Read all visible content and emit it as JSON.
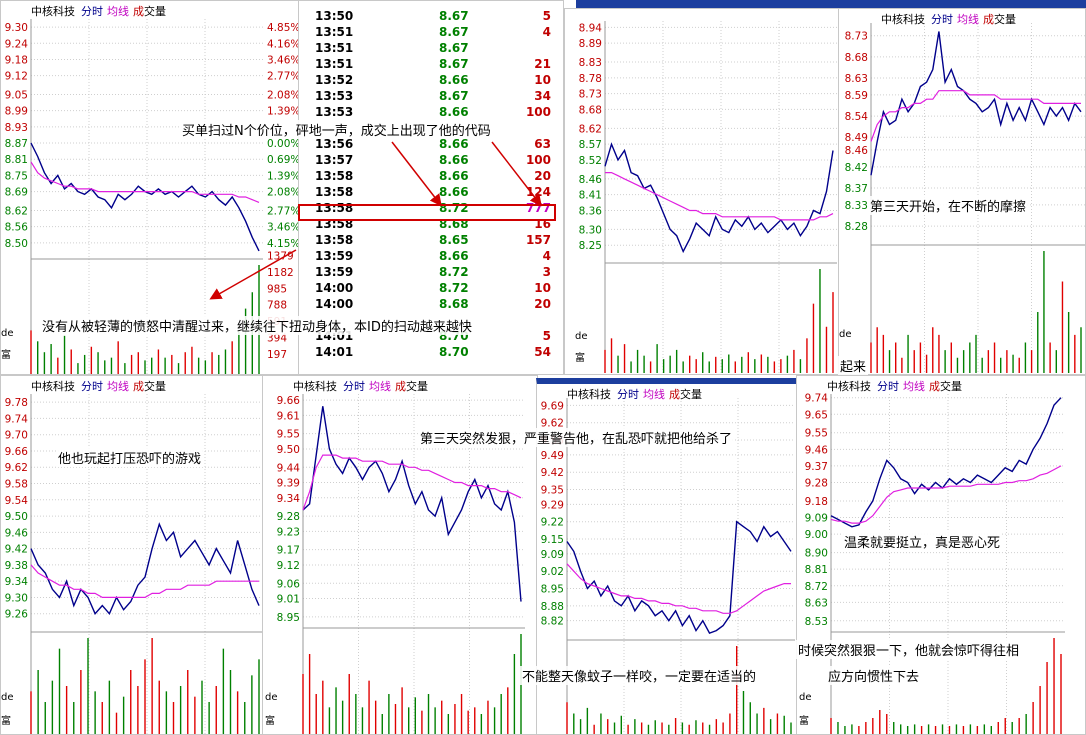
{
  "header": {
    "name": "中核科技",
    "tab_time": "分时",
    "tab_avg": "均线",
    "tab_vol_1": "成",
    "tab_vol_2": "交",
    "tab_vol_3": "量"
  },
  "colors": {
    "price": "#00008b",
    "avg": "#e020e0",
    "up": "#e00000",
    "down": "#008000",
    "grid": "#cfcfcf",
    "axis_left": "#c00000",
    "axis_right": "#c00000"
  },
  "side_labels": {
    "de": "de",
    "fu": "富"
  },
  "annotations": {
    "a1": "买单扫过N个价位，砰地一声，成交上出现了他的代码",
    "a2": "没有从被轻薄的愤怒中清醒过来，继续往下扭动身体，本ID的扫动越来越快",
    "a3": "第三天开始，在不断的摩擦",
    "a4": "他也玩起打压恐吓的游戏",
    "a5": "第三天突然发狠，严重警告他，在乱恐吓就把他给杀了",
    "a6": "温柔就要挺立，真是恶心死",
    "a7": "不能整天像蚊子一样咬，一定要在适当的",
    "a8": "时候突然狠狠一下，他就会惊吓得往相",
    "a9": "应方向惯性下去",
    "a10": "起来"
  },
  "tape": [
    {
      "t": "13:50",
      "p": "8.67",
      "v": "5"
    },
    {
      "t": "13:51",
      "p": "8.67",
      "v": "4"
    },
    {
      "t": "13:51",
      "p": "8.67",
      "v": ""
    },
    {
      "t": "13:51",
      "p": "8.67",
      "v": "21"
    },
    {
      "t": "13:52",
      "p": "8.66",
      "v": "10"
    },
    {
      "t": "13:53",
      "p": "8.67",
      "v": "34"
    },
    {
      "t": "13:53",
      "p": "8.66",
      "v": "100"
    },
    {
      "t": "13:56",
      "p": "8.66",
      "v": "63"
    },
    {
      "t": "13:57",
      "p": "8.66",
      "v": "100"
    },
    {
      "t": "13:58",
      "p": "8.66",
      "v": "20"
    },
    {
      "t": "13:58",
      "p": "8.66",
      "v": "124"
    },
    {
      "t": "13:58",
      "p": "8.72",
      "v": "777"
    },
    {
      "t": "13:58",
      "p": "8.68",
      "v": "16"
    },
    {
      "t": "13:58",
      "p": "8.65",
      "v": "157"
    },
    {
      "t": "13:59",
      "p": "8.66",
      "v": "4"
    },
    {
      "t": "13:59",
      "p": "8.72",
      "v": "3"
    },
    {
      "t": "14:00",
      "p": "8.72",
      "v": "10"
    },
    {
      "t": "14:00",
      "p": "8.68",
      "v": "20"
    },
    {
      "t": "14:01",
      "p": "8.70",
      "v": "5"
    },
    {
      "t": "14:01",
      "p": "8.70",
      "v": "54"
    }
  ],
  "chart_data": [
    {
      "type": "line",
      "id": "p1",
      "yticks_left": [
        "9.30",
        "9.24",
        "9.18",
        "9.12",
        "9.05",
        "8.99",
        "8.93",
        "8.87",
        "8.81",
        "8.75",
        "8.69",
        "8.62",
        "8.56",
        "8.50"
      ],
      "yticks_right": [
        "4.85%",
        "4.16%",
        "3.46%",
        "2.77%",
        "2.08%",
        "1.39%",
        "",
        "0.00%",
        "0.69%",
        "1.39%",
        "2.08%",
        "2.77%",
        "3.46%",
        "4.15%"
      ],
      "vol_ticks": [
        "1379",
        "1182",
        "985",
        "788",
        "591",
        "394",
        "197"
      ],
      "ylim": [
        8.44,
        9.33
      ],
      "series": [
        {
          "values": [
            8.87,
            8.82,
            8.76,
            8.72,
            8.75,
            8.7,
            8.72,
            8.69,
            8.68,
            8.7,
            8.67,
            8.66,
            8.63,
            8.68,
            8.66,
            8.68,
            8.71,
            8.69,
            8.68,
            8.7,
            8.68,
            8.69,
            8.67,
            8.69,
            8.71,
            8.68,
            8.67,
            8.69,
            8.66,
            8.64,
            8.67,
            8.63,
            8.58,
            8.52,
            8.47
          ]
        },
        {
          "values": [
            8.8,
            8.76,
            8.74,
            8.73,
            8.72,
            8.71,
            8.71,
            8.7,
            8.7,
            8.7,
            8.69,
            8.69,
            8.69,
            8.69,
            8.69,
            8.69,
            8.69,
            8.69,
            8.69,
            8.69,
            8.69,
            8.69,
            8.69,
            8.69,
            8.69,
            8.68,
            8.68,
            8.68,
            8.68,
            8.68,
            8.68,
            8.67,
            8.67,
            8.66,
            8.65
          ]
        }
      ],
      "volumes": [
        80,
        60,
        40,
        55,
        30,
        70,
        45,
        20,
        35,
        50,
        40,
        25,
        30,
        60,
        20,
        35,
        40,
        25,
        30,
        45,
        30,
        35,
        20,
        40,
        50,
        30,
        25,
        40,
        35,
        45,
        60,
        80,
        120,
        150,
        200
      ]
    },
    {
      "type": "line",
      "id": "p2",
      "yticks_left": [
        "8.94",
        "8.89",
        "8.83",
        "8.78",
        "8.73",
        "8.68",
        "8.62",
        "8.57",
        "8.52",
        "8.46",
        "8.41",
        "8.36",
        "8.30",
        "8.25"
      ],
      "ylim": [
        8.2,
        8.96
      ],
      "series": [
        {
          "values": [
            8.5,
            8.57,
            8.52,
            8.55,
            8.48,
            8.47,
            8.43,
            8.44,
            8.4,
            8.35,
            8.3,
            8.28,
            8.23,
            8.27,
            8.32,
            8.3,
            8.28,
            8.34,
            8.3,
            8.29,
            8.33,
            8.31,
            8.34,
            8.3,
            8.32,
            8.29,
            8.31,
            8.33,
            8.3,
            8.32,
            8.28,
            8.31,
            8.36,
            8.35,
            8.42,
            8.55
          ]
        },
        {
          "values": [
            8.48,
            8.48,
            8.47,
            8.46,
            8.45,
            8.44,
            8.43,
            8.42,
            8.41,
            8.4,
            8.39,
            8.38,
            8.37,
            8.36,
            8.36,
            8.35,
            8.35,
            8.35,
            8.34,
            8.34,
            8.34,
            8.34,
            8.34,
            8.34,
            8.34,
            8.34,
            8.34,
            8.33,
            8.33,
            8.33,
            8.33,
            8.33,
            8.33,
            8.34,
            8.34,
            8.35
          ]
        }
      ],
      "volumes": [
        20,
        30,
        15,
        25,
        10,
        20,
        15,
        10,
        25,
        12,
        15,
        20,
        10,
        15,
        12,
        18,
        10,
        14,
        12,
        16,
        10,
        14,
        18,
        12,
        16,
        14,
        10,
        12,
        15,
        20,
        12,
        30,
        60,
        90,
        40,
        70
      ]
    },
    {
      "type": "line",
      "id": "p3",
      "yticks_left": [
        "8.73",
        "8.68",
        "8.63",
        "8.59",
        "8.54",
        "8.49",
        "8.46",
        "8.42",
        "8.37",
        "8.33",
        "8.28"
      ],
      "ylim": [
        8.24,
        8.76
      ],
      "series": [
        {
          "values": [
            8.4,
            8.48,
            8.55,
            8.52,
            8.53,
            8.58,
            8.55,
            8.57,
            8.61,
            8.62,
            8.65,
            8.74,
            8.62,
            8.65,
            8.61,
            8.6,
            8.58,
            8.57,
            8.55,
            8.56,
            8.58,
            8.52,
            8.57,
            8.53,
            8.56,
            8.53,
            8.58,
            8.55,
            8.52,
            8.56,
            8.54,
            8.56,
            8.53,
            8.57,
            8.55
          ]
        },
        {
          "values": [
            8.48,
            8.52,
            8.54,
            8.55,
            8.55,
            8.56,
            8.56,
            8.57,
            8.57,
            8.58,
            8.58,
            8.6,
            8.6,
            8.6,
            8.6,
            8.6,
            8.59,
            8.59,
            8.59,
            8.59,
            8.59,
            8.58,
            8.58,
            8.58,
            8.58,
            8.58,
            8.58,
            8.58,
            8.57,
            8.57,
            8.57,
            8.57,
            8.57,
            8.57,
            8.57
          ]
        }
      ],
      "volumes": [
        20,
        30,
        25,
        15,
        20,
        10,
        25,
        15,
        20,
        12,
        30,
        25,
        15,
        20,
        10,
        15,
        20,
        25,
        10,
        15,
        20,
        10,
        15,
        12,
        10,
        20,
        15,
        40,
        80,
        20,
        15,
        60,
        40,
        25,
        30
      ]
    },
    {
      "type": "line",
      "id": "p4",
      "yticks_left": [
        "9.78",
        "9.74",
        "9.70",
        "9.66",
        "9.62",
        "9.58",
        "9.54",
        "9.50",
        "9.46",
        "9.42",
        "9.38",
        "9.34",
        "9.30",
        "9.26"
      ],
      "ylim": [
        9.22,
        9.8
      ],
      "series": [
        {
          "values": [
            9.42,
            9.38,
            9.36,
            9.32,
            9.3,
            9.34,
            9.28,
            9.32,
            9.3,
            9.26,
            9.28,
            9.26,
            9.3,
            9.27,
            9.29,
            9.33,
            9.35,
            9.42,
            9.48,
            9.44,
            9.46,
            9.4,
            9.42,
            9.44,
            9.41,
            9.38,
            9.42,
            9.39,
            9.36,
            9.44,
            9.38,
            9.32,
            9.28
          ]
        },
        {
          "values": [
            9.38,
            9.36,
            9.35,
            9.34,
            9.33,
            9.33,
            9.32,
            9.32,
            9.31,
            9.31,
            9.3,
            9.3,
            9.3,
            9.3,
            9.3,
            9.3,
            9.3,
            9.31,
            9.31,
            9.32,
            9.32,
            9.32,
            9.33,
            9.33,
            9.33,
            9.33,
            9.34,
            9.34,
            9.34,
            9.34,
            9.34,
            9.34,
            9.34
          ]
        }
      ],
      "volumes": [
        40,
        60,
        30,
        50,
        80,
        45,
        30,
        60,
        90,
        40,
        30,
        50,
        20,
        35,
        60,
        45,
        70,
        90,
        50,
        40,
        30,
        45,
        60,
        35,
        50,
        30,
        45,
        80,
        60,
        40,
        30,
        55,
        70
      ]
    },
    {
      "type": "line",
      "id": "p5",
      "yticks_left": [
        "9.66",
        "9.61",
        "9.55",
        "9.50",
        "9.44",
        "9.39",
        "9.34",
        "9.28",
        "9.23",
        "9.17",
        "9.12",
        "9.06",
        "9.01",
        "8.95"
      ],
      "ylim": [
        8.92,
        9.68
      ],
      "series": [
        {
          "values": [
            9.3,
            9.32,
            9.48,
            9.64,
            9.5,
            9.45,
            9.42,
            9.47,
            9.44,
            9.4,
            9.44,
            9.46,
            9.42,
            9.36,
            9.4,
            9.46,
            9.38,
            9.32,
            9.36,
            9.3,
            9.28,
            9.34,
            9.22,
            9.26,
            9.3,
            9.36,
            9.4,
            9.34,
            9.38,
            9.32,
            9.3,
            9.36,
            9.26,
            9.0
          ]
        },
        {
          "values": [
            9.3,
            9.36,
            9.44,
            9.48,
            9.48,
            9.48,
            9.47,
            9.47,
            9.47,
            9.46,
            9.46,
            9.46,
            9.46,
            9.45,
            9.45,
            9.45,
            9.44,
            9.44,
            9.43,
            9.43,
            9.42,
            9.41,
            9.4,
            9.39,
            9.39,
            9.38,
            9.38,
            9.38,
            9.37,
            9.37,
            9.36,
            9.36,
            9.35,
            9.34
          ]
        }
      ],
      "volumes": [
        90,
        120,
        60,
        80,
        40,
        70,
        50,
        90,
        60,
        40,
        80,
        50,
        30,
        60,
        45,
        70,
        40,
        55,
        35,
        60,
        40,
        50,
        30,
        45,
        60,
        35,
        40,
        30,
        50,
        40,
        60,
        70,
        120,
        150
      ]
    },
    {
      "type": "line",
      "id": "p6",
      "yticks_left": [
        "9.69",
        "9.62",
        "9.55",
        "9.49",
        "9.42",
        "9.35",
        "9.29",
        "9.22",
        "9.15",
        "9.09",
        "9.02",
        "8.95",
        "8.88",
        "8.82"
      ],
      "ylim": [
        8.75,
        9.72
      ],
      "series": [
        {
          "values": [
            9.14,
            9.1,
            9.02,
            8.95,
            8.98,
            8.92,
            8.96,
            8.9,
            8.88,
            8.92,
            8.86,
            8.9,
            8.88,
            8.84,
            8.86,
            8.82,
            8.86,
            8.8,
            8.84,
            8.78,
            8.82,
            8.77,
            8.78,
            8.8,
            8.84,
            9.22,
            9.2,
            9.18,
            9.14,
            9.2,
            9.16,
            9.18,
            9.14,
            9.1
          ]
        },
        {
          "values": [
            9.05,
            9.02,
            8.99,
            8.97,
            8.96,
            8.95,
            8.94,
            8.93,
            8.92,
            8.92,
            8.91,
            8.91,
            8.9,
            8.9,
            8.89,
            8.89,
            8.88,
            8.88,
            8.87,
            8.87,
            8.86,
            8.86,
            8.86,
            8.85,
            8.85,
            8.86,
            8.88,
            8.9,
            8.92,
            8.94,
            8.95,
            8.96,
            8.97,
            8.97
          ]
        }
      ],
      "volumes": [
        30,
        20,
        15,
        25,
        10,
        20,
        15,
        12,
        18,
        10,
        15,
        12,
        10,
        14,
        12,
        10,
        16,
        12,
        10,
        14,
        12,
        10,
        15,
        12,
        20,
        80,
        40,
        30,
        20,
        25,
        15,
        20,
        18,
        12
      ]
    },
    {
      "type": "line",
      "id": "p7",
      "yticks_left": [
        "9.74",
        "9.65",
        "9.55",
        "9.46",
        "9.37",
        "9.28",
        "9.18",
        "9.09",
        "9.00",
        "8.90",
        "8.81",
        "8.72",
        "8.63",
        "8.53"
      ],
      "ylim": [
        8.48,
        9.76
      ],
      "series": [
        {
          "values": [
            9.1,
            9.08,
            9.06,
            9.04,
            9.05,
            9.12,
            9.18,
            9.3,
            9.4,
            9.36,
            9.3,
            9.28,
            9.22,
            9.27,
            9.24,
            9.28,
            9.25,
            9.3,
            9.27,
            9.3,
            9.28,
            9.32,
            9.3,
            9.28,
            9.32,
            9.36,
            9.34,
            9.4,
            9.38,
            9.46,
            9.52,
            9.6,
            9.7,
            9.74
          ]
        },
        {
          "values": [
            9.08,
            9.07,
            9.07,
            9.06,
            9.06,
            9.07,
            9.1,
            9.15,
            9.2,
            9.23,
            9.24,
            9.25,
            9.25,
            9.25,
            9.25,
            9.25,
            9.25,
            9.26,
            9.26,
            9.26,
            9.26,
            9.27,
            9.27,
            9.27,
            9.27,
            9.28,
            9.28,
            9.29,
            9.29,
            9.3,
            9.32,
            9.33,
            9.35,
            9.37
          ]
        }
      ],
      "volumes": [
        20,
        15,
        10,
        12,
        10,
        15,
        20,
        30,
        25,
        15,
        12,
        10,
        12,
        10,
        12,
        10,
        12,
        10,
        12,
        10,
        12,
        10,
        12,
        10,
        15,
        20,
        15,
        20,
        25,
        40,
        60,
        90,
        120,
        100
      ]
    }
  ]
}
